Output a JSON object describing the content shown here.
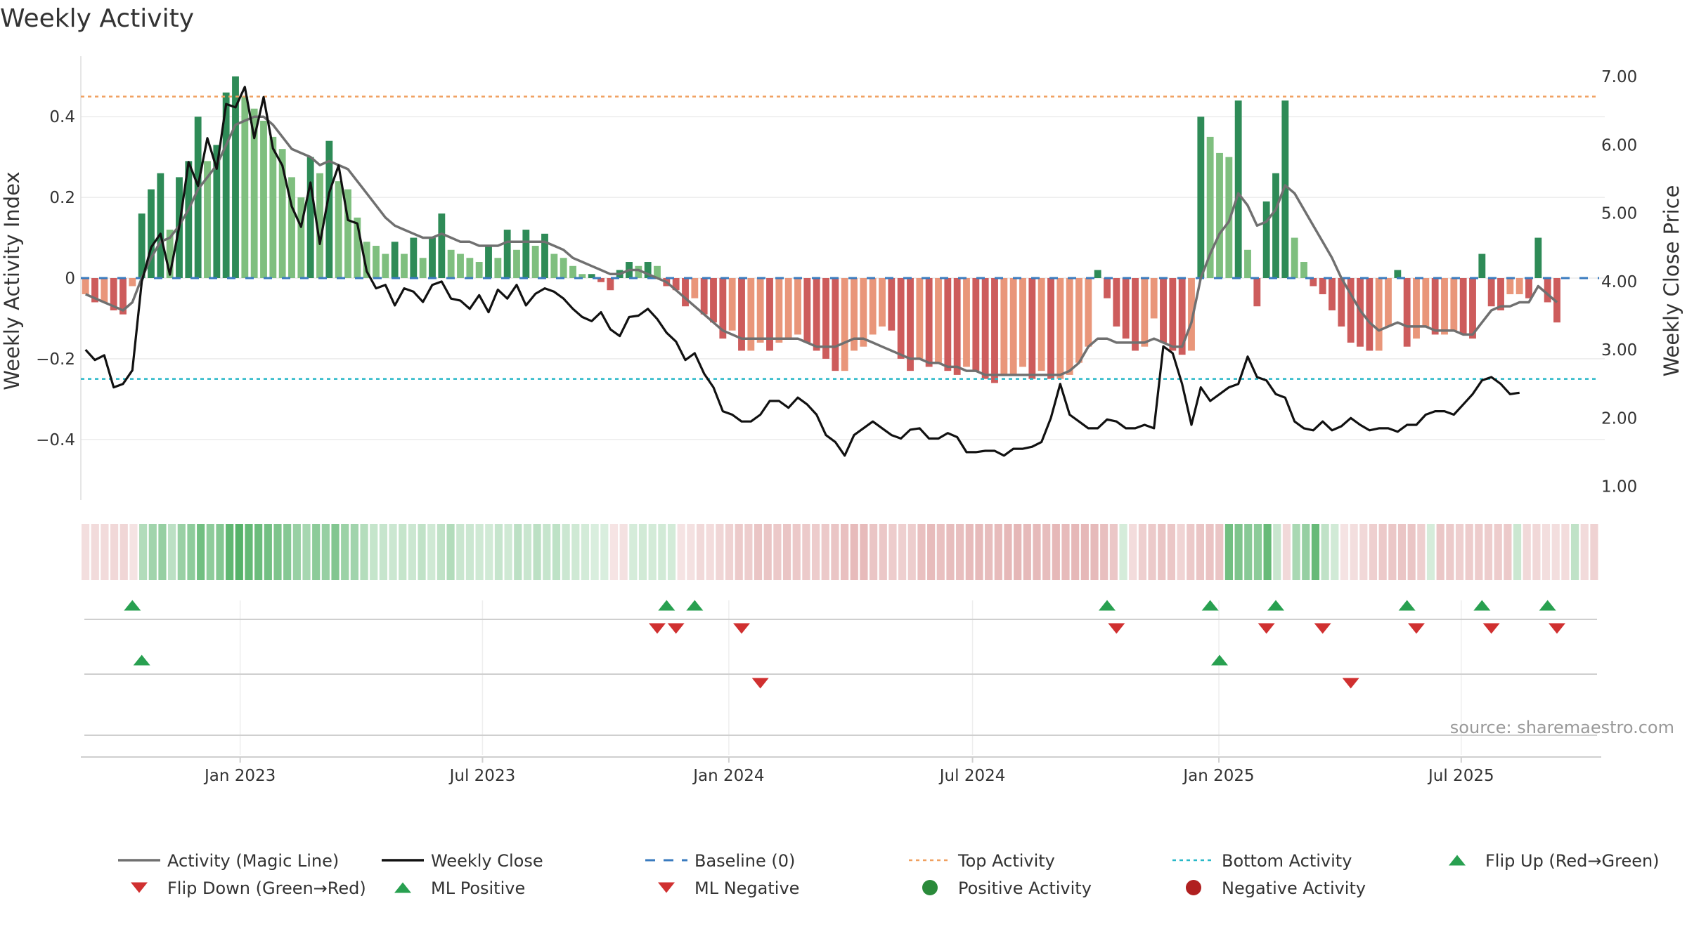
{
  "chart_data": {
    "type": "bar",
    "title": "Weekly Activity",
    "ylabel_left": "Weekly Activity Index",
    "ylabel_right": "Weekly Close Price",
    "source": "source: sharemaestro.com",
    "left_axis": {
      "ylim": [
        -0.55,
        0.55
      ],
      "ticks": [
        -0.4,
        -0.2,
        0,
        0.2,
        0.4
      ],
      "tick_labels": [
        "−0.4",
        "−0.2",
        "0",
        "0.2",
        "0.4"
      ]
    },
    "right_axis": {
      "ylim": [
        0.8,
        7.3
      ],
      "ticks": [
        1,
        2,
        3,
        4,
        5,
        6,
        7
      ],
      "tick_labels": [
        "1.00",
        "2.00",
        "3.00",
        "4.00",
        "5.00",
        "6.00",
        "7.00"
      ]
    },
    "x_axis": {
      "start": "2022-09-04",
      "end": "2025-10-12",
      "ticks": [
        {
          "date": "2023-01-01",
          "label": "Jan 2023"
        },
        {
          "date": "2023-07-01",
          "label": "Jul 2023"
        },
        {
          "date": "2024-01-01",
          "label": "Jan 2024"
        },
        {
          "date": "2024-07-01",
          "label": "Jul 2024"
        },
        {
          "date": "2025-01-01",
          "label": "Jan 2025"
        },
        {
          "date": "2025-07-01",
          "label": "Jul 2025"
        }
      ]
    },
    "top_activity": 0.45,
    "bottom_activity": -0.25,
    "weeks_start": "2022-09-04",
    "activity": [
      -0.04,
      -0.06,
      -0.06,
      -0.08,
      -0.09,
      -0.02,
      0.16,
      0.22,
      0.26,
      0.12,
      0.25,
      0.29,
      0.4,
      0.29,
      0.33,
      0.46,
      0.5,
      0.45,
      0.42,
      0.39,
      0.35,
      0.32,
      0.25,
      0.2,
      0.3,
      0.26,
      0.34,
      0.24,
      0.22,
      0.15,
      0.09,
      0.08,
      0.06,
      0.09,
      0.06,
      0.1,
      0.05,
      0.1,
      0.16,
      0.07,
      0.06,
      0.05,
      0.04,
      0.08,
      0.05,
      0.12,
      0.07,
      0.12,
      0.08,
      0.11,
      0.06,
      0.05,
      0.03,
      0.01,
      0.01,
      -0.01,
      -0.03,
      0.02,
      0.04,
      0.03,
      0.04,
      0.03,
      -0.02,
      -0.03,
      -0.07,
      -0.05,
      -0.09,
      -0.11,
      -0.15,
      -0.13,
      -0.18,
      -0.18,
      -0.16,
      -0.18,
      -0.16,
      -0.15,
      -0.14,
      -0.16,
      -0.18,
      -0.2,
      -0.23,
      -0.23,
      -0.18,
      -0.17,
      -0.14,
      -0.12,
      -0.13,
      -0.2,
      -0.23,
      -0.2,
      -0.22,
      -0.21,
      -0.23,
      -0.24,
      -0.22,
      -0.23,
      -0.25,
      -0.26,
      -0.24,
      -0.24,
      -0.22,
      -0.25,
      -0.23,
      -0.25,
      -0.25,
      -0.24,
      -0.21,
      -0.17,
      0.02,
      -0.05,
      -0.12,
      -0.15,
      -0.18,
      -0.17,
      -0.1,
      -0.16,
      -0.18,
      -0.19,
      -0.18,
      0.4,
      0.35,
      0.31,
      0.3,
      0.44,
      0.07,
      -0.07,
      0.19,
      0.26,
      0.44,
      0.1,
      0.04,
      -0.02,
      -0.04,
      -0.08,
      -0.12,
      -0.16,
      -0.17,
      -0.18,
      -0.18,
      -0.12,
      0.02,
      -0.17,
      -0.15,
      -0.12,
      -0.14,
      -0.14,
      -0.13,
      -0.14,
      -0.15,
      0.06,
      -0.07,
      -0.08,
      -0.04,
      -0.04,
      -0.05,
      0.1,
      -0.06,
      -0.11
    ],
    "magic_line": [
      -0.04,
      -0.05,
      -0.06,
      -0.07,
      -0.08,
      -0.06,
      0.0,
      0.05,
      0.09,
      0.1,
      0.13,
      0.17,
      0.22,
      0.25,
      0.28,
      0.33,
      0.38,
      0.39,
      0.4,
      0.4,
      0.38,
      0.35,
      0.32,
      0.31,
      0.3,
      0.28,
      0.29,
      0.28,
      0.27,
      0.24,
      0.21,
      0.18,
      0.15,
      0.13,
      0.12,
      0.11,
      0.1,
      0.1,
      0.11,
      0.1,
      0.09,
      0.09,
      0.08,
      0.08,
      0.08,
      0.09,
      0.09,
      0.09,
      0.09,
      0.09,
      0.08,
      0.07,
      0.05,
      0.04,
      0.03,
      0.02,
      0.01,
      0.01,
      0.02,
      0.02,
      0.01,
      0.0,
      -0.01,
      -0.03,
      -0.05,
      -0.07,
      -0.09,
      -0.11,
      -0.13,
      -0.14,
      -0.15,
      -0.15,
      -0.15,
      -0.15,
      -0.15,
      -0.15,
      -0.15,
      -0.16,
      -0.17,
      -0.17,
      -0.17,
      -0.16,
      -0.15,
      -0.15,
      -0.16,
      -0.17,
      -0.18,
      -0.19,
      -0.2,
      -0.2,
      -0.21,
      -0.21,
      -0.22,
      -0.22,
      -0.23,
      -0.23,
      -0.24,
      -0.24,
      -0.24,
      -0.24,
      -0.24,
      -0.24,
      -0.24,
      -0.24,
      -0.24,
      -0.23,
      -0.21,
      -0.17,
      -0.15,
      -0.15,
      -0.16,
      -0.16,
      -0.16,
      -0.16,
      -0.15,
      -0.16,
      -0.17,
      -0.17,
      -0.11,
      0.0,
      0.06,
      0.11,
      0.14,
      0.21,
      0.18,
      0.13,
      0.14,
      0.17,
      0.23,
      0.21,
      0.17,
      0.13,
      0.09,
      0.05,
      0.0,
      -0.04,
      -0.08,
      -0.11,
      -0.13,
      -0.12,
      -0.11,
      -0.12,
      -0.12,
      -0.12,
      -0.13,
      -0.13,
      -0.13,
      -0.14,
      -0.14,
      -0.11,
      -0.08,
      -0.07,
      -0.07,
      -0.06,
      -0.06,
      -0.02,
      -0.04,
      -0.06
    ],
    "weekly_close": [
      3.0,
      2.85,
      2.92,
      2.45,
      2.5,
      2.7,
      4.0,
      4.5,
      4.7,
      4.1,
      4.8,
      5.75,
      5.4,
      6.1,
      5.65,
      6.6,
      6.55,
      6.85,
      6.1,
      6.7,
      5.95,
      5.7,
      5.1,
      4.8,
      5.45,
      4.55,
      5.3,
      5.7,
      4.9,
      4.85,
      4.15,
      3.9,
      3.95,
      3.65,
      3.9,
      3.85,
      3.7,
      3.95,
      4.0,
      3.75,
      3.72,
      3.6,
      3.8,
      3.55,
      3.88,
      3.75,
      3.95,
      3.65,
      3.82,
      3.9,
      3.85,
      3.75,
      3.6,
      3.48,
      3.42,
      3.55,
      3.3,
      3.2,
      3.48,
      3.5,
      3.6,
      3.45,
      3.25,
      3.12,
      2.85,
      2.95,
      2.65,
      2.45,
      2.1,
      2.05,
      1.95,
      1.95,
      2.05,
      2.25,
      2.25,
      2.15,
      2.3,
      2.2,
      2.05,
      1.75,
      1.65,
      1.45,
      1.75,
      1.85,
      1.95,
      1.85,
      1.75,
      1.7,
      1.83,
      1.85,
      1.7,
      1.7,
      1.78,
      1.72,
      1.5,
      1.5,
      1.52,
      1.52,
      1.45,
      1.55,
      1.55,
      1.58,
      1.65,
      2.0,
      2.5,
      2.05,
      1.95,
      1.85,
      1.85,
      1.98,
      1.95,
      1.85,
      1.85,
      1.9,
      1.85,
      3.05,
      2.95,
      2.5,
      1.9,
      2.45,
      2.25,
      2.35,
      2.45,
      2.5,
      2.9,
      2.6,
      2.55,
      2.35,
      2.3,
      1.95,
      1.85,
      1.82,
      1.95,
      1.82,
      1.88,
      2.0,
      1.9,
      1.82,
      1.85,
      1.85,
      1.8,
      1.9,
      1.9,
      2.05,
      2.1,
      2.1,
      2.05,
      2.2,
      2.35,
      2.55,
      2.6,
      2.5,
      2.35,
      2.37
    ],
    "flip_up": [
      "2022-10-09",
      "2023-11-12",
      "2023-12-03",
      "2024-10-06",
      "2024-12-22",
      "2025-02-09",
      "2025-05-18",
      "2025-07-13",
      "2025-08-31"
    ],
    "flip_down": [
      "2023-11-05",
      "2023-11-19",
      "2024-01-07",
      "2024-10-13",
      "2025-02-02",
      "2025-03-16",
      "2025-05-25",
      "2025-07-20",
      "2025-09-07"
    ],
    "ml_positive": [
      "2022-10-16",
      "2024-12-29"
    ],
    "ml_negative": [
      "2024-01-21",
      "2025-04-06"
    ],
    "legend": [
      {
        "label": "Activity (Magic Line)",
        "kind": "line",
        "color": "#707070"
      },
      {
        "label": "Weekly Close",
        "kind": "line",
        "color": "#111111"
      },
      {
        "label": "Baseline (0)",
        "kind": "dash",
        "color": "#3a7bbf"
      },
      {
        "label": "Top Activity",
        "kind": "dot",
        "color": "#f0a060"
      },
      {
        "label": "Bottom Activity",
        "kind": "dot",
        "color": "#28b8c8"
      },
      {
        "label": "Flip Up (Red→Green)",
        "kind": "tri-up",
        "color": "#28a050"
      },
      {
        "label": "Flip Down (Green→Red)",
        "kind": "tri-down",
        "color": "#d03030"
      },
      {
        "label": "ML Positive",
        "kind": "tri-up",
        "color": "#28a050"
      },
      {
        "label": "ML Negative",
        "kind": "tri-down",
        "color": "#d03030"
      },
      {
        "label": "Positive Activity",
        "kind": "circle",
        "color": "#2a8a3a"
      },
      {
        "label": "Negative Activity",
        "kind": "circle",
        "color": "#b02020"
      }
    ],
    "colors": {
      "pos_dark": "#2e8b57",
      "pos_light": "#7fbf7f",
      "neg_dark": "#cd5c5c",
      "neg_light": "#e9967a",
      "magic": "#707070",
      "close": "#111111",
      "top": "#f0a060",
      "bottom": "#28b8c8",
      "baseline": "#3a7bbf",
      "up": "#28a050",
      "down": "#d03030"
    }
  }
}
